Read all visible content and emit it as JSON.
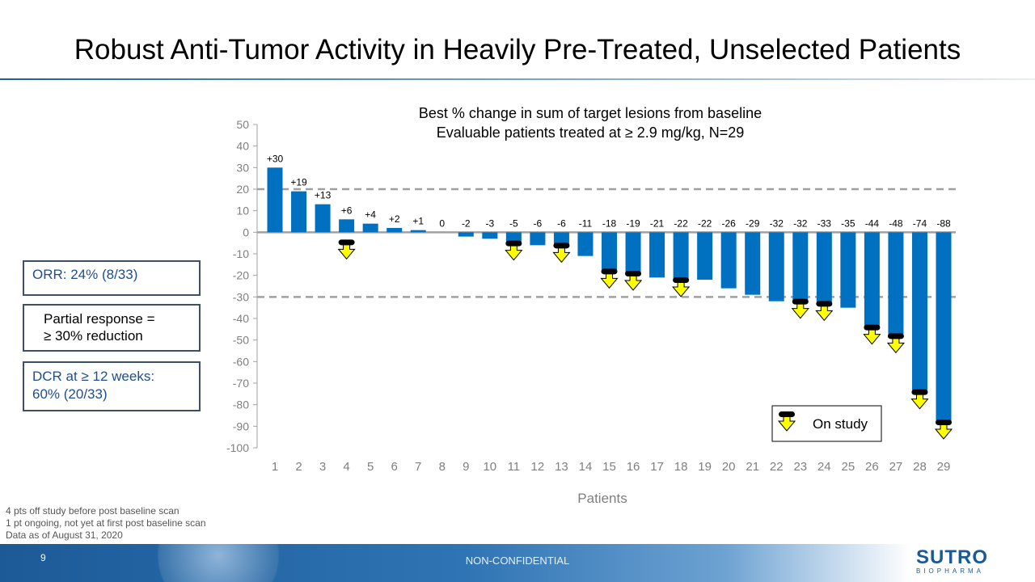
{
  "slide": {
    "title": "Robust Anti-Tumor Activity in Heavily Pre-Treated, Unselected Patients",
    "page_number": "9",
    "confidentiality": "NON-CONFIDENTIAL",
    "logo": {
      "name": "SUTRO",
      "sub": "BIOPHARMA"
    },
    "callouts": {
      "orr": "ORR: 24% (8/33)",
      "pr_line1": "Partial response =",
      "pr_line2": "≥ 30% reduction",
      "dcr_line1": "DCR at ≥ 12 weeks:",
      "dcr_line2": "60% (20/33)"
    },
    "footnotes": [
      "4 pts off study before post baseline scan",
      "1 pt ongoing, not yet at first post baseline scan",
      "Data as of August 31, 2020"
    ]
  },
  "chart_data": {
    "type": "bar",
    "title": "Best % change in sum of target lesions from baseline",
    "subtitle": "Evaluable patients treated at ≥ 2.9 mg/kg,  N=29",
    "xlabel": "Patients",
    "ylabel": "",
    "ylim": [
      -100,
      50
    ],
    "yticks": [
      50,
      40,
      30,
      20,
      10,
      0,
      -10,
      -20,
      -30,
      -40,
      -50,
      -60,
      -70,
      -80,
      -90,
      -100
    ],
    "categories": [
      "1",
      "2",
      "3",
      "4",
      "5",
      "6",
      "7",
      "8",
      "9",
      "10",
      "11",
      "12",
      "13",
      "14",
      "15",
      "16",
      "17",
      "18",
      "19",
      "20",
      "21",
      "22",
      "23",
      "24",
      "25",
      "26",
      "27",
      "28",
      "29"
    ],
    "values": [
      30,
      19,
      13,
      6,
      4,
      2,
      1,
      0,
      -2,
      -3,
      -5,
      -6,
      -6,
      -11,
      -18,
      -19,
      -21,
      -22,
      -22,
      -26,
      -29,
      -32,
      -32,
      -33,
      -35,
      -44,
      -48,
      -74,
      -88
    ],
    "data_labels": [
      "+30",
      "+19",
      "+13",
      "+6",
      "+4",
      "+2",
      "+1",
      "0",
      "-2",
      "-3",
      "-5",
      "-6",
      "-6",
      "-11",
      "-18",
      "-19",
      "-21",
      "-22",
      "-22",
      "-26",
      "-29",
      "-32",
      "-32",
      "-33",
      "-35",
      "-44",
      "-48",
      "-74",
      "-88"
    ],
    "on_study_patients": [
      4,
      11,
      13,
      15,
      16,
      18,
      23,
      24,
      26,
      27,
      28,
      29
    ],
    "reference_lines": [
      20,
      -30
    ],
    "legend": {
      "label": "On study",
      "placement": "bottom-right"
    },
    "grid": false,
    "colors": {
      "bar": "#0070c0",
      "marker": "#ffff00",
      "reference": "#a0a0a0"
    }
  }
}
